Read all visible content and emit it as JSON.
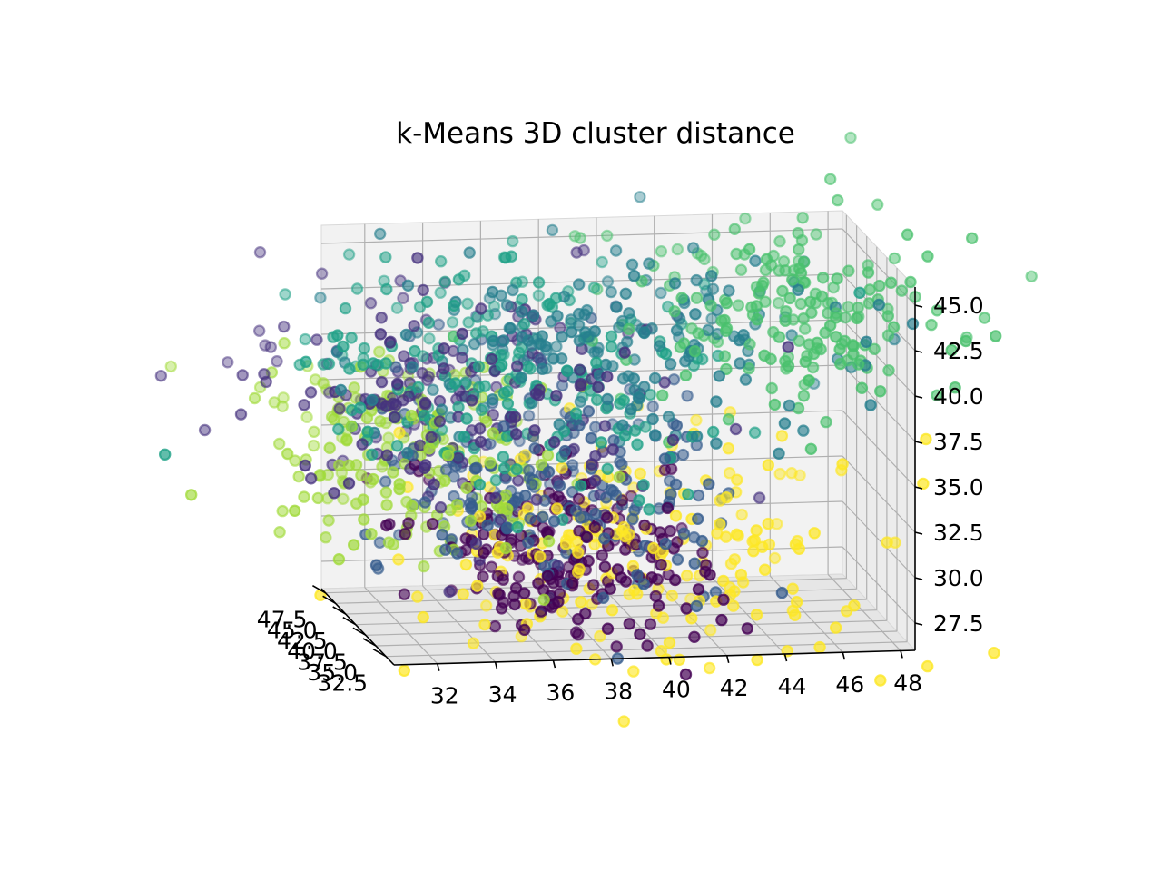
{
  "chart_data": {
    "type": "scatter3d",
    "title": "k-Means 3D cluster distance",
    "xlabel": "",
    "ylabel": "",
    "zlabel": "",
    "x_ticks": [
      "32",
      "34",
      "36",
      "38",
      "40",
      "42",
      "44",
      "46",
      "48"
    ],
    "y_ticks": [
      "32.5",
      "35.0",
      "37.5",
      "40.0",
      "42.5",
      "45.0",
      "47.5"
    ],
    "z_ticks": [
      "27.5",
      "30.0",
      "32.5",
      "35.0",
      "37.5",
      "40.0",
      "42.5",
      "45.0"
    ],
    "xlim": [
      30.5,
      48.5
    ],
    "ylim": [
      30.5,
      48.5
    ],
    "zlim": [
      26,
      46
    ],
    "grid": true,
    "legend": "none",
    "colormap": "viridis",
    "cluster_colors": [
      "#440154",
      "#46327e",
      "#365c8d",
      "#277f8e",
      "#1fa187",
      "#4ac16d",
      "#a0da39",
      "#fde725"
    ],
    "clusters": [
      {
        "center": [
          37.5,
          36,
          30.5
        ],
        "spread": [
          2.4,
          5,
          2.2
        ],
        "count": 200
      },
      {
        "center": [
          34,
          38,
          39
        ],
        "spread": [
          3.5,
          7,
          3.2
        ],
        "count": 200
      },
      {
        "center": [
          37,
          38,
          34
        ],
        "spread": [
          3,
          6,
          3
        ],
        "count": 200
      },
      {
        "center": [
          39,
          36,
          42
        ],
        "spread": [
          4,
          6,
          2.2
        ],
        "count": 190
      },
      {
        "center": [
          35,
          38,
          40.5
        ],
        "spread": [
          3.5,
          6,
          2.8
        ],
        "count": 200
      },
      {
        "center": [
          45,
          36,
          43.5
        ],
        "spread": [
          3,
          6,
          2.2
        ],
        "count": 190
      },
      {
        "center": [
          32,
          40,
          35
        ],
        "spread": [
          2.5,
          6,
          2.8
        ],
        "count": 190
      },
      {
        "center": [
          40,
          36,
          31
        ],
        "spread": [
          4,
          6,
          2.8
        ],
        "count": 200
      }
    ]
  }
}
